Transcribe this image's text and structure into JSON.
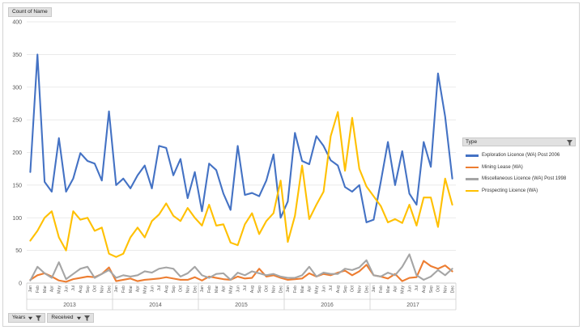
{
  "header": {
    "measure_label": "Count of Name"
  },
  "legend": {
    "title": "Type"
  },
  "footer": {
    "fields": [
      "Years",
      "Received"
    ]
  },
  "icons": {
    "filter": "filter-icon",
    "dropdown": "dropdown-arrow-icon"
  },
  "chart_data": {
    "type": "line",
    "ylim": [
      0,
      400
    ],
    "yticks": [
      0,
      50,
      100,
      150,
      200,
      250,
      300,
      350,
      400
    ],
    "grid": "horizontal",
    "legend_position": "right",
    "years": [
      "2013",
      "2014",
      "2015",
      "2016",
      "2017"
    ],
    "months": [
      "Jan",
      "Feb",
      "Mar",
      "Apr",
      "May",
      "Jun",
      "Jul",
      "Aug",
      "Sep",
      "Oct",
      "Nov",
      "Dec"
    ],
    "series": [
      {
        "name": "Exploration Licence (WA) Post 2006",
        "color": "#4472c4",
        "values": [
          170,
          350,
          155,
          140,
          222,
          140,
          160,
          199,
          187,
          183,
          157,
          263,
          150,
          160,
          145,
          165,
          180,
          145,
          210,
          207,
          165,
          190,
          130,
          170,
          110,
          183,
          173,
          137,
          112,
          210,
          135,
          138,
          133,
          157,
          197,
          100,
          125,
          230,
          187,
          182,
          225,
          210,
          188,
          180,
          147,
          140,
          150,
          93,
          97,
          155,
          216,
          150,
          202,
          137,
          120,
          216,
          178,
          321,
          255,
          160
        ]
      },
      {
        "name": "Mining Lease (WA)",
        "color": "#ed7d31",
        "values": [
          5,
          12,
          15,
          10,
          4,
          2,
          6,
          8,
          10,
          9,
          14,
          24,
          3,
          5,
          7,
          3,
          5,
          6,
          7,
          9,
          7,
          5,
          5,
          9,
          4,
          10,
          8,
          6,
          5,
          10,
          7,
          8,
          22,
          10,
          12,
          8,
          5,
          6,
          7,
          15,
          10,
          14,
          12,
          16,
          19,
          12,
          18,
          28,
          12,
          10,
          7,
          14,
          3,
          8,
          9,
          34,
          26,
          22,
          27,
          18
        ]
      },
      {
        "name": "Miscellaneous Licence (WA) Post 1998",
        "color": "#a5a5a5",
        "values": [
          4,
          25,
          15,
          8,
          32,
          6,
          14,
          22,
          25,
          8,
          14,
          20,
          8,
          12,
          10,
          12,
          18,
          16,
          22,
          24,
          22,
          10,
          15,
          25,
          12,
          8,
          14,
          15,
          5,
          16,
          12,
          18,
          15,
          12,
          14,
          10,
          8,
          8,
          12,
          25,
          10,
          16,
          14,
          14,
          22,
          20,
          24,
          35,
          12,
          10,
          16,
          12,
          25,
          44,
          12,
          5,
          10,
          20,
          12,
          22
        ]
      },
      {
        "name": "Prospecting Licence (WA)",
        "color": "#ffc000",
        "values": [
          65,
          80,
          100,
          110,
          70,
          50,
          110,
          97,
          100,
          80,
          85,
          45,
          40,
          45,
          70,
          85,
          70,
          95,
          105,
          122,
          103,
          95,
          115,
          100,
          88,
          120,
          88,
          90,
          62,
          58,
          90,
          107,
          75,
          95,
          107,
          157,
          63,
          103,
          180,
          98,
          120,
          140,
          225,
          262,
          172,
          253,
          175,
          148,
          133,
          118,
          93,
          98,
          92,
          120,
          88,
          131,
          131,
          86,
          160,
          120
        ]
      }
    ]
  }
}
